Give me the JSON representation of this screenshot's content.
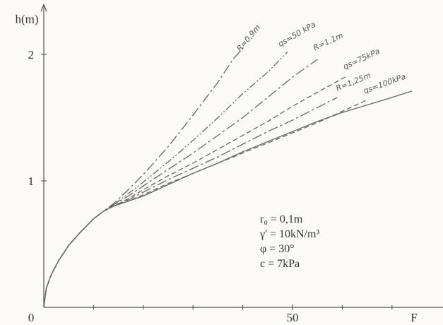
{
  "chart_data": {
    "type": "line",
    "title": "",
    "xlabel": "F",
    "ylabel": "h(m)",
    "xlim": [
      0,
      75
    ],
    "ylim": [
      0,
      2.35
    ],
    "x_ticks": [
      {
        "value": 0,
        "label": "0"
      },
      {
        "value": 50,
        "label": "50"
      }
    ],
    "x_minor_ticks": [
      10,
      20,
      30,
      40,
      60,
      70
    ],
    "y_ticks": [
      {
        "value": 1,
        "label": "1"
      },
      {
        "value": 2,
        "label": "2"
      }
    ],
    "grid": false,
    "series": [
      {
        "name": "R=0,9m",
        "style": "dash-dot",
        "points": [
          [
            0,
            0
          ],
          [
            0.5,
            0.15
          ],
          [
            1.5,
            0.26
          ],
          [
            3,
            0.37
          ],
          [
            5,
            0.49
          ],
          [
            7.5,
            0.6
          ],
          [
            10,
            0.7
          ],
          [
            12,
            0.76
          ],
          [
            14,
            0.82
          ],
          [
            17,
            0.93
          ],
          [
            20,
            1.05
          ],
          [
            25,
            1.27
          ],
          [
            30,
            1.52
          ],
          [
            35,
            1.78
          ],
          [
            38,
            1.96
          ],
          [
            40.5,
            2.07
          ]
        ]
      },
      {
        "name": "qs=50 kPa",
        "style": "dash-dot-dot",
        "points": [
          [
            0,
            0
          ],
          [
            0.5,
            0.15
          ],
          [
            1.5,
            0.26
          ],
          [
            3,
            0.37
          ],
          [
            5,
            0.49
          ],
          [
            7.5,
            0.6
          ],
          [
            10,
            0.7
          ],
          [
            12,
            0.76
          ],
          [
            14,
            0.81
          ],
          [
            17,
            0.9
          ],
          [
            20,
            0.99
          ],
          [
            25,
            1.15
          ],
          [
            30,
            1.32
          ],
          [
            35,
            1.5
          ],
          [
            40,
            1.69
          ],
          [
            45,
            1.86
          ],
          [
            49,
            2.02
          ]
        ]
      },
      {
        "name": "R=1,1m",
        "style": "dash-dot",
        "points": [
          [
            0,
            0
          ],
          [
            0.5,
            0.15
          ],
          [
            1.5,
            0.26
          ],
          [
            3,
            0.37
          ],
          [
            5,
            0.49
          ],
          [
            7.5,
            0.6
          ],
          [
            10,
            0.7
          ],
          [
            12,
            0.76
          ],
          [
            14,
            0.81
          ],
          [
            17,
            0.88
          ],
          [
            20,
            0.96
          ],
          [
            25,
            1.09
          ],
          [
            30,
            1.22
          ],
          [
            35,
            1.36
          ],
          [
            40,
            1.5
          ],
          [
            45,
            1.66
          ],
          [
            50,
            1.82
          ],
          [
            55,
            1.96
          ]
        ]
      },
      {
        "name": "qs=75kPa",
        "style": "dashed",
        "points": [
          [
            0,
            0
          ],
          [
            0.5,
            0.15
          ],
          [
            1.5,
            0.26
          ],
          [
            3,
            0.37
          ],
          [
            5,
            0.49
          ],
          [
            7.5,
            0.6
          ],
          [
            10,
            0.7
          ],
          [
            12,
            0.76
          ],
          [
            14,
            0.8
          ],
          [
            17,
            0.86
          ],
          [
            20,
            0.93
          ],
          [
            25,
            1.04
          ],
          [
            30,
            1.14
          ],
          [
            35,
            1.25
          ],
          [
            40,
            1.36
          ],
          [
            45,
            1.47
          ],
          [
            50,
            1.59
          ],
          [
            55,
            1.7
          ],
          [
            61,
            1.83
          ]
        ]
      },
      {
        "name": "R=1,25m",
        "style": "dash-dot",
        "points": [
          [
            0,
            0
          ],
          [
            0.5,
            0.15
          ],
          [
            1.5,
            0.26
          ],
          [
            3,
            0.37
          ],
          [
            5,
            0.49
          ],
          [
            7.5,
            0.6
          ],
          [
            10,
            0.7
          ],
          [
            12,
            0.76
          ],
          [
            14,
            0.8
          ],
          [
            17,
            0.85
          ],
          [
            20,
            0.91
          ],
          [
            25,
            1.01
          ],
          [
            30,
            1.1
          ],
          [
            35,
            1.19
          ],
          [
            40,
            1.29
          ],
          [
            45,
            1.39
          ],
          [
            50,
            1.48
          ],
          [
            55,
            1.58
          ],
          [
            59,
            1.66
          ]
        ]
      },
      {
        "name": "qs=100kPa",
        "style": "dashed",
        "points": [
          [
            0,
            0
          ],
          [
            0.5,
            0.15
          ],
          [
            1.5,
            0.26
          ],
          [
            3,
            0.37
          ],
          [
            5,
            0.49
          ],
          [
            7.5,
            0.6
          ],
          [
            10,
            0.7
          ],
          [
            12,
            0.76
          ],
          [
            14,
            0.8
          ],
          [
            17,
            0.84
          ],
          [
            20,
            0.89
          ],
          [
            25,
            0.98
          ],
          [
            30,
            1.06
          ],
          [
            35,
            1.14
          ],
          [
            40,
            1.22
          ],
          [
            45,
            1.3
          ],
          [
            50,
            1.38
          ],
          [
            55,
            1.46
          ],
          [
            60,
            1.55
          ],
          [
            65,
            1.64
          ]
        ]
      },
      {
        "name": "",
        "style": "solid",
        "points": [
          [
            0,
            0
          ],
          [
            0.5,
            0.15
          ],
          [
            1.5,
            0.26
          ],
          [
            3,
            0.37
          ],
          [
            5,
            0.49
          ],
          [
            7.5,
            0.6
          ],
          [
            10,
            0.7
          ],
          [
            12,
            0.76
          ],
          [
            14,
            0.8
          ],
          [
            17,
            0.84
          ],
          [
            20,
            0.88
          ],
          [
            25,
            0.97
          ],
          [
            30,
            1.06
          ],
          [
            35,
            1.14
          ],
          [
            40,
            1.23
          ],
          [
            45,
            1.31
          ],
          [
            50,
            1.39
          ],
          [
            55,
            1.47
          ],
          [
            60,
            1.54
          ],
          [
            65,
            1.6
          ],
          [
            70,
            1.66
          ],
          [
            74,
            1.71
          ]
        ]
      }
    ],
    "annotations": [
      {
        "text": "R=0,9m",
        "series": 0,
        "at": [
          39.5,
          2.02
        ],
        "rotate": -50
      },
      {
        "text": "qs=50 kPa",
        "series": 1,
        "at": [
          47.5,
          2.06
        ],
        "rotate": -30
      },
      {
        "text": "R=1,1m",
        "series": 2,
        "at": [
          54.5,
          2.03
        ],
        "rotate": -25
      },
      {
        "text": "qs=75kPa",
        "series": 3,
        "at": [
          60.5,
          1.88
        ],
        "rotate": -25
      },
      {
        "text": "R=1,25m",
        "series": 4,
        "at": [
          59,
          1.71
        ],
        "rotate": -22
      },
      {
        "text": "qs=100kPa",
        "series": 5,
        "at": [
          64.5,
          1.69
        ],
        "rotate": -20
      }
    ]
  },
  "params": {
    "r0": "r₀ = 0,1m",
    "gamma": "γ' = 10kN/m³",
    "phi": "φ = 30°",
    "c": "c = 7kPa"
  }
}
